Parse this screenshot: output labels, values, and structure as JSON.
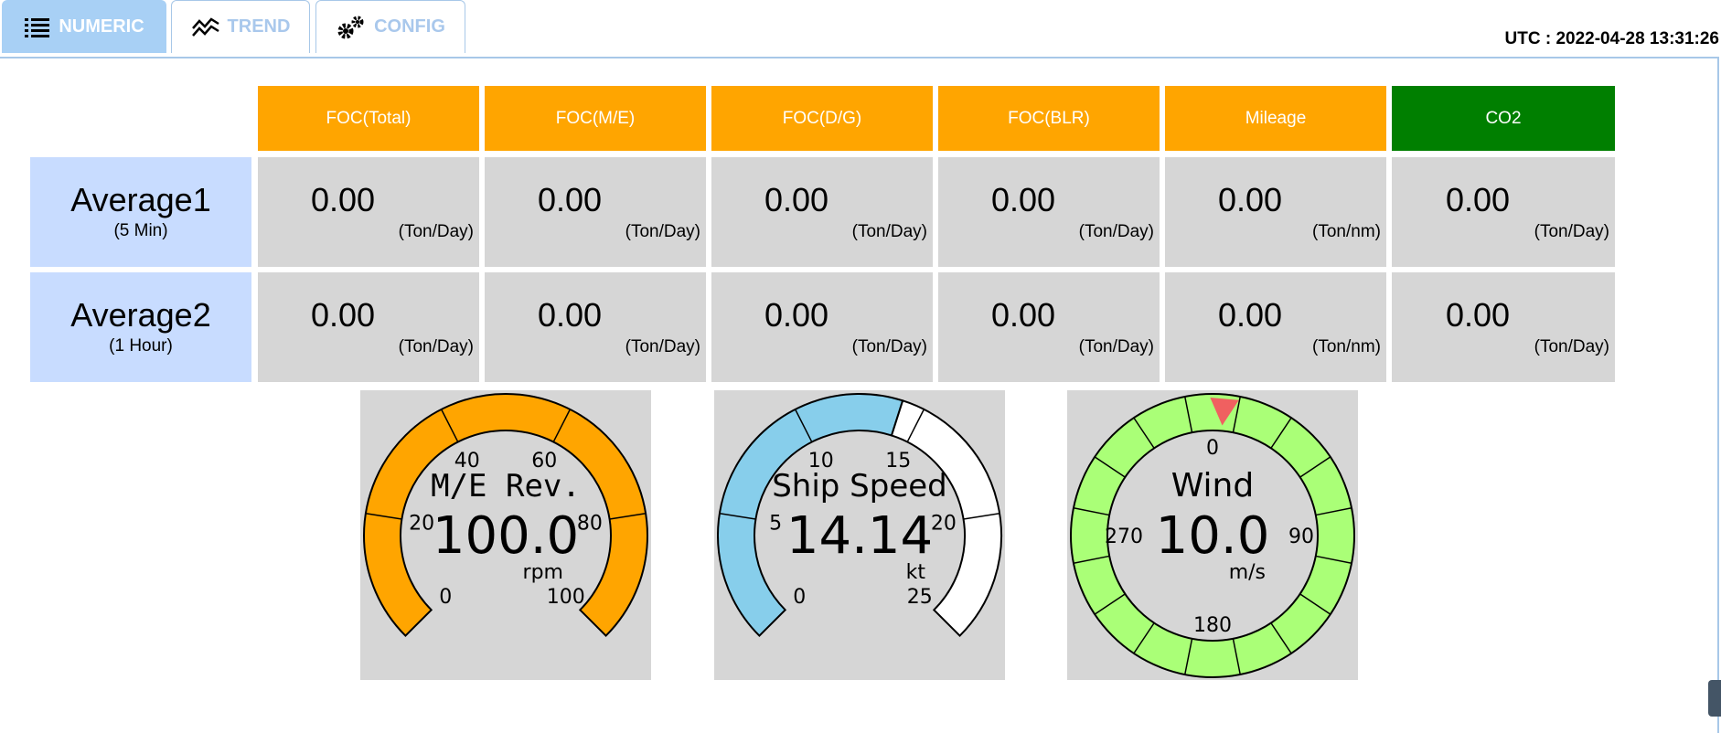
{
  "tabs": [
    {
      "label": "NUMERIC",
      "icon": "list-icon",
      "active": true
    },
    {
      "label": "TREND",
      "icon": "trend-icon",
      "active": false
    },
    {
      "label": "CONFIG",
      "icon": "gears-icon",
      "active": false
    }
  ],
  "utc": "UTC :  2022-04-28 13:31:26",
  "table": {
    "headers": [
      "FOC(Total)",
      "FOC(M/E)",
      "FOC(D/G)",
      "FOC(BLR)",
      "Mileage",
      "CO2"
    ],
    "header_colors": [
      "#ffa500",
      "#ffa500",
      "#ffa500",
      "#ffa500",
      "#ffa500",
      "#007f00"
    ],
    "rows": [
      {
        "label": "Average1",
        "sublabel": "(5 Min)",
        "values": [
          "0.00",
          "0.00",
          "0.00",
          "0.00",
          "0.00",
          "0.00"
        ],
        "units": [
          "(Ton/Day)",
          "(Ton/Day)",
          "(Ton/Day)",
          "(Ton/Day)",
          "(Ton/nm)",
          "(Ton/Day)"
        ]
      },
      {
        "label": "Average2",
        "sublabel": "(1 Hour)",
        "values": [
          "0.00",
          "0.00",
          "0.00",
          "0.00",
          "0.00",
          "0.00"
        ],
        "units": [
          "(Ton/Day)",
          "(Ton/Day)",
          "(Ton/Day)",
          "(Ton/Day)",
          "(Ton/nm)",
          "(Ton/Day)"
        ]
      }
    ]
  },
  "gauges": {
    "me_rev": {
      "title": "M/E Rev.",
      "value": "100.0",
      "unit": "rpm",
      "level": 100,
      "max": 100,
      "ticks": [
        "0",
        "20",
        "40",
        "60",
        "80",
        "100"
      ],
      "fill_color": "#ffa500",
      "empty_color": "#ffffff"
    },
    "ship_speed": {
      "title": "Ship Speed",
      "value": "14.14",
      "unit": "kt",
      "level": 14.14,
      "max": 25,
      "ticks": [
        "0",
        "5",
        "10",
        "15",
        "20",
        "25"
      ],
      "fill_color": "#87ceeb",
      "empty_color": "#ffffff"
    },
    "wind": {
      "title": "Wind",
      "value": "10.0",
      "unit": "m/s",
      "direction_deg": 5,
      "ticks": [
        "0",
        "90",
        "180",
        "270"
      ],
      "ring_color": "#aaff77",
      "pointer_color": "#f06060"
    }
  }
}
